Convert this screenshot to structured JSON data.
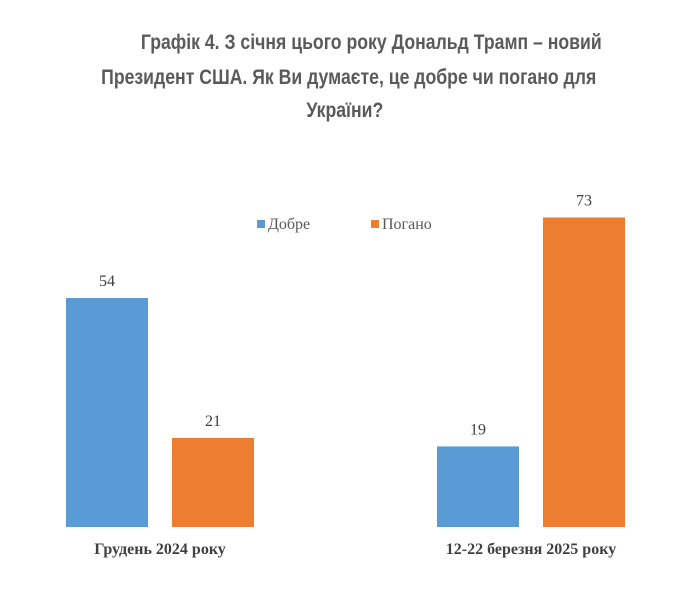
{
  "title": {
    "line1": "Графік 4. З січня цього року Дональд Трамп – новий",
    "line2": "Президент США. Як Ви думаєте, це добре чи погано для",
    "line3": "України?"
  },
  "chart_data": {
    "type": "bar",
    "title": "Графік 4. З січня цього року Дональд Трамп – новий Президент США. Як Ви думаєте, це добре чи погано для України?",
    "categories": [
      "Грудень 2024 року",
      "12-22 березня 2025 року"
    ],
    "series": [
      {
        "name": "Добре",
        "color": "#5b9bd5",
        "values": [
          54,
          19
        ]
      },
      {
        "name": "Погано",
        "color": "#ed7d31",
        "values": [
          21,
          73
        ]
      }
    ],
    "ylim": [
      0,
      80
    ],
    "grid": false,
    "legend": "top-center",
    "xlabel": "",
    "ylabel": ""
  }
}
